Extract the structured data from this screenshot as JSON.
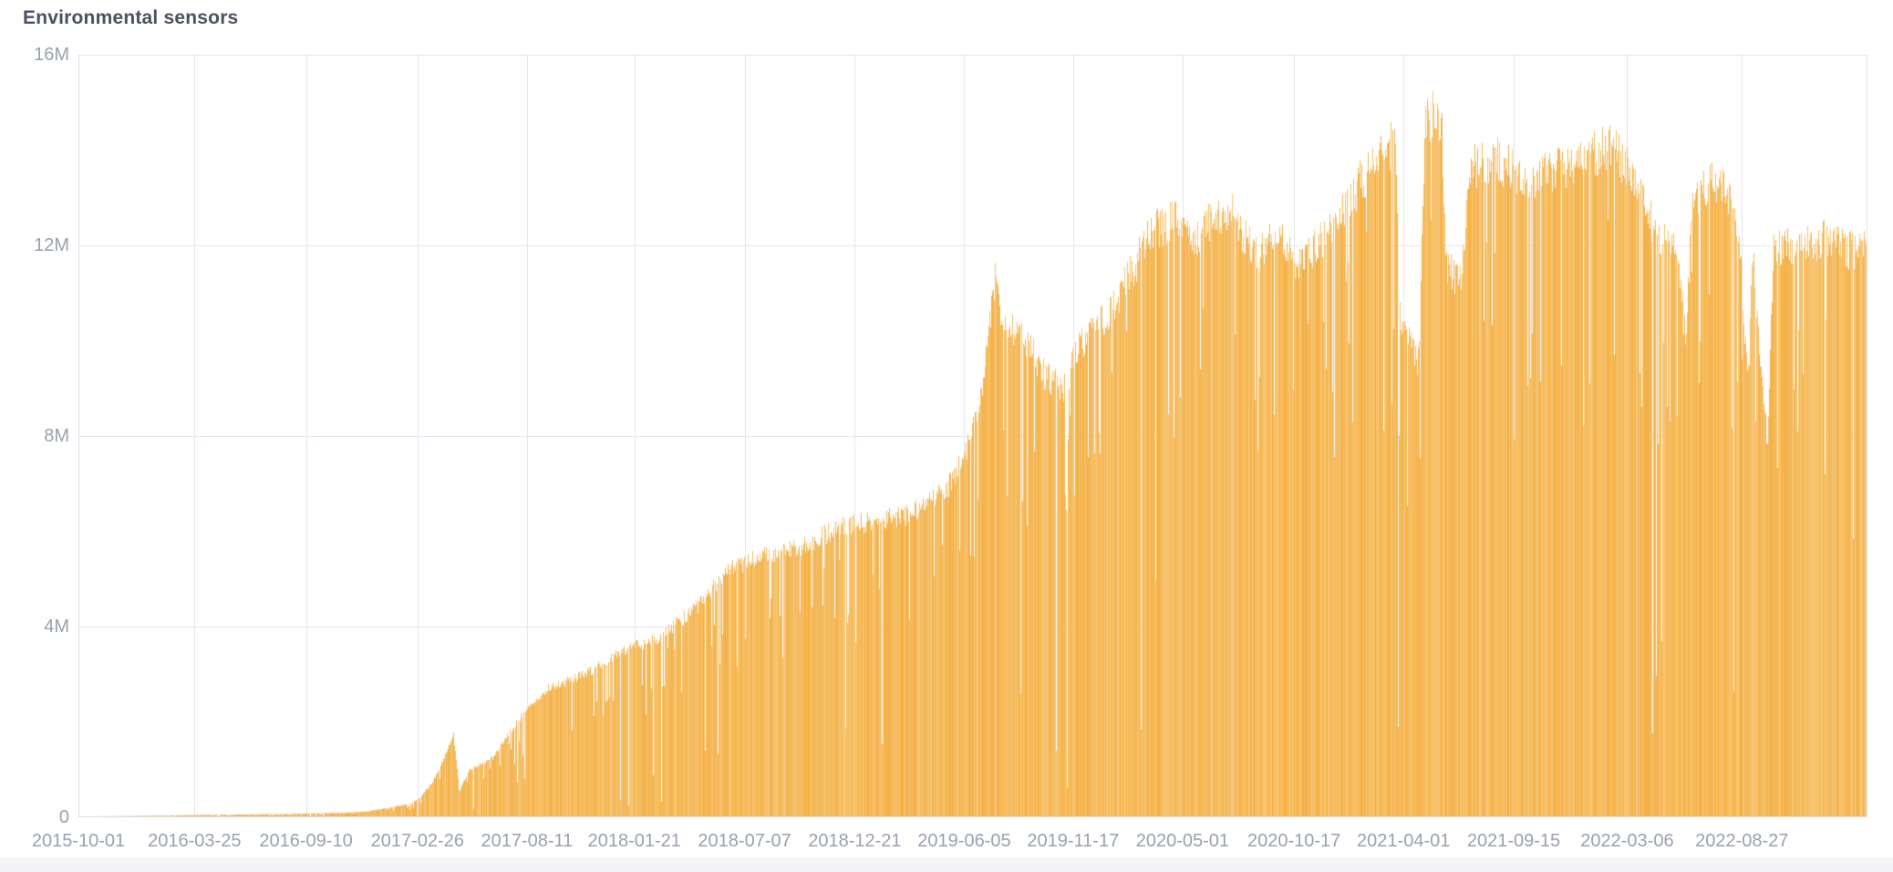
{
  "chart_data": {
    "type": "bar",
    "title": "Environmental sensors",
    "series_name": "Environmental sensors",
    "x_start": "2015-10-01",
    "x_end": "2023-03-04",
    "x_tick_labels": [
      "2015-10-01",
      "2016-03-25",
      "2016-09-10",
      "2017-02-26",
      "2017-08-11",
      "2018-01-21",
      "2018-07-07",
      "2018-12-21",
      "2019-06-05",
      "2019-11-17",
      "2020-05-01",
      "2020-10-17",
      "2021-04-01",
      "2021-09-15",
      "2022-03-06",
      "2022-08-27"
    ],
    "y_tick_labels": [
      "0",
      "4M",
      "8M",
      "12M",
      "16M"
    ],
    "y_tick_values": [
      0,
      4000000,
      8000000,
      12000000,
      16000000
    ],
    "ylim": [
      0,
      16000000
    ],
    "grid": true,
    "legend": false,
    "bar_granularity": "daily",
    "envelope_format": [
      "date",
      "value_millions"
    ],
    "envelope_points": [
      [
        "2015-10-01",
        0.02
      ],
      [
        "2016-01-01",
        0.03
      ],
      [
        "2016-04-03",
        0.05
      ],
      [
        "2016-07-23",
        0.07
      ],
      [
        "2016-10-14",
        0.09
      ],
      [
        "2016-12-08",
        0.12
      ],
      [
        "2017-01-19",
        0.22
      ],
      [
        "2017-02-15",
        0.3
      ],
      [
        "2017-03-01",
        0.42
      ],
      [
        "2017-03-22",
        0.8
      ],
      [
        "2017-04-07",
        1.3
      ],
      [
        "2017-04-21",
        1.85
      ],
      [
        "2017-04-30",
        0.55
      ],
      [
        "2017-05-13",
        1.0
      ],
      [
        "2017-06-20",
        1.3
      ],
      [
        "2017-08-06",
        2.3
      ],
      [
        "2017-09-11",
        2.8
      ],
      [
        "2017-11-05",
        3.1
      ],
      [
        "2017-12-30",
        3.6
      ],
      [
        "2018-02-24",
        3.9
      ],
      [
        "2018-04-20",
        4.5
      ],
      [
        "2018-06-14",
        5.4
      ],
      [
        "2018-07-26",
        5.65
      ],
      [
        "2018-10-03",
        5.9
      ],
      [
        "2018-11-27",
        6.3
      ],
      [
        "2019-01-21",
        6.45
      ],
      [
        "2019-03-18",
        6.6
      ],
      [
        "2019-05-12",
        7.2
      ],
      [
        "2019-06-15",
        8.2
      ],
      [
        "2019-07-03",
        9.4
      ],
      [
        "2019-07-14",
        10.8
      ],
      [
        "2019-07-23",
        11.9
      ],
      [
        "2019-07-31",
        10.7
      ],
      [
        "2019-08-31",
        10.5
      ],
      [
        "2019-10-04",
        9.6
      ],
      [
        "2019-11-01",
        9.3
      ],
      [
        "2019-11-27",
        10.3
      ],
      [
        "2020-01-09",
        10.9
      ],
      [
        "2020-02-19",
        12.0
      ],
      [
        "2020-03-11",
        12.7
      ],
      [
        "2020-04-22",
        13.0
      ],
      [
        "2020-05-19",
        12.6
      ],
      [
        "2020-06-23",
        13.1
      ],
      [
        "2020-07-14",
        13.2
      ],
      [
        "2020-08-17",
        12.2
      ],
      [
        "2020-09-21",
        12.7
      ],
      [
        "2020-10-21",
        11.9
      ],
      [
        "2020-11-22",
        12.4
      ],
      [
        "2021-01-02",
        13.3
      ],
      [
        "2021-02-13",
        14.2
      ],
      [
        "2021-03-19",
        14.7
      ],
      [
        "2021-03-28",
        10.6
      ],
      [
        "2021-04-24",
        9.9
      ],
      [
        "2021-05-03",
        15.0
      ],
      [
        "2021-05-15",
        15.25
      ],
      [
        "2021-05-29",
        14.8
      ],
      [
        "2021-06-05",
        11.9
      ],
      [
        "2021-06-28",
        11.6
      ],
      [
        "2021-07-07",
        14.1
      ],
      [
        "2021-08-18",
        14.3
      ],
      [
        "2021-09-29",
        13.9
      ],
      [
        "2021-11-09",
        14.0
      ],
      [
        "2021-12-21",
        14.2
      ],
      [
        "2022-02-07",
        14.6
      ],
      [
        "2022-03-14",
        14.0
      ],
      [
        "2022-04-03",
        13.2
      ],
      [
        "2022-04-24",
        12.5
      ],
      [
        "2022-05-22",
        12.4
      ],
      [
        "2022-06-02",
        10.3
      ],
      [
        "2022-06-12",
        13.2
      ],
      [
        "2022-07-09",
        13.8
      ],
      [
        "2022-07-30",
        13.7
      ],
      [
        "2022-08-20",
        13.0
      ],
      [
        "2022-09-05",
        9.4
      ],
      [
        "2022-09-12",
        12.4
      ],
      [
        "2022-10-04",
        8.0
      ],
      [
        "2022-10-13",
        12.3
      ],
      [
        "2022-11-18",
        12.4
      ],
      [
        "2022-12-29",
        12.6
      ],
      [
        "2023-02-02",
        12.3
      ],
      [
        "2023-03-04",
        12.4
      ]
    ],
    "style": {
      "bar_hue": 37,
      "bar_sat_range": [
        84,
        94
      ],
      "bar_light_range": [
        60,
        73
      ],
      "bar_color_main": "#f2b050",
      "bar_color_light": "#f8cf8e",
      "grid_color": "#e6e6f0",
      "axis_color": "#dcdce8",
      "tick_label_color": "#9aa1ac",
      "title_color": "#4a5160",
      "background": "#ffffff",
      "footer_band_color": "#f4f4f7"
    },
    "texture": {
      "seed": 12,
      "deep_dip_prob": 0.013,
      "dip_prob": 0.1,
      "top_jitter": 0.07
    }
  }
}
